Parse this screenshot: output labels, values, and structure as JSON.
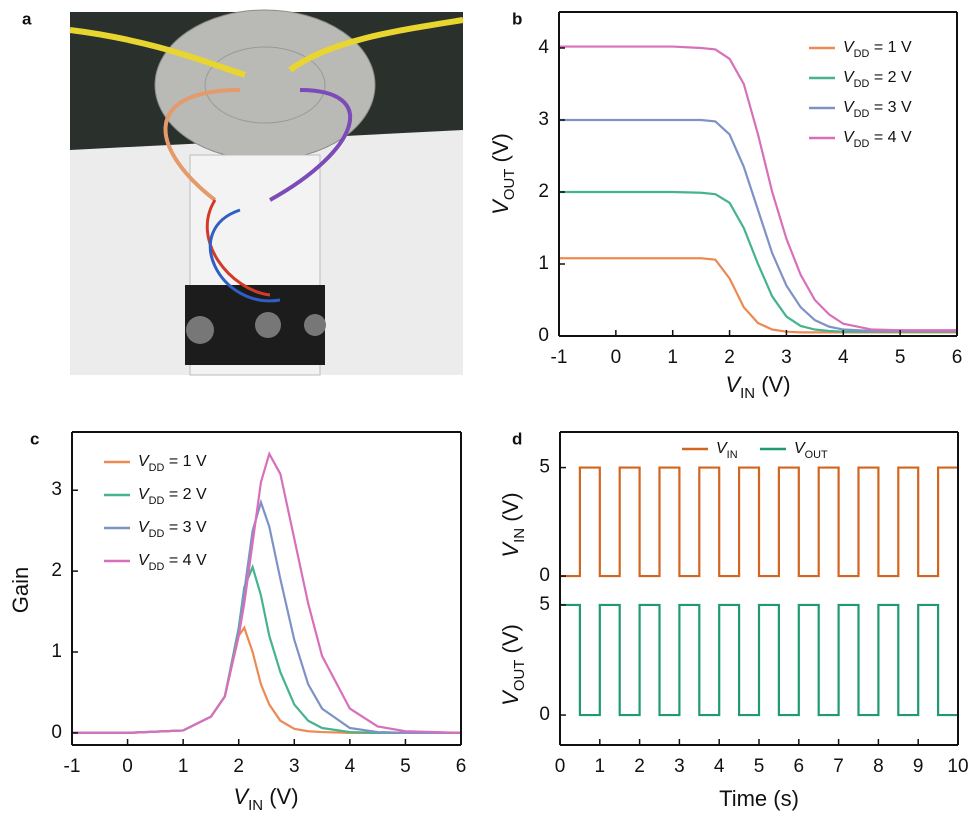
{
  "photo_panel": {
    "panel_label": "a"
  },
  "chart_data": [
    {
      "type": "line",
      "panel_label": "b",
      "x_label": {
        "symbol": "V",
        "subscript": "IN",
        "rest": " (V)"
      },
      "y_label": {
        "symbol": "V",
        "subscript": "OUT",
        "rest": " (V)"
      },
      "x": [
        -1,
        0,
        1,
        1.5,
        1.75,
        2,
        2.25,
        2.5,
        2.75,
        3,
        3.25,
        3.5,
        3.75,
        4,
        4.5,
        5,
        6
      ],
      "series": [
        {
          "name": {
            "symbol": "V",
            "subscript": "DD",
            "rest": " = 1 V"
          },
          "color": "#ec8a55",
          "values": [
            1.08,
            1.08,
            1.08,
            1.08,
            1.06,
            0.8,
            0.4,
            0.18,
            0.09,
            0.06,
            0.05,
            0.05,
            0.05,
            0.05,
            0.05,
            0.05,
            0.05
          ]
        },
        {
          "name": {
            "symbol": "V",
            "subscript": "DD",
            "rest": " = 2 V"
          },
          "color": "#45b48e",
          "values": [
            2.0,
            2.0,
            2.0,
            1.99,
            1.97,
            1.85,
            1.5,
            1.0,
            0.55,
            0.27,
            0.14,
            0.09,
            0.07,
            0.06,
            0.06,
            0.06,
            0.06
          ]
        },
        {
          "name": {
            "symbol": "V",
            "subscript": "DD",
            "rest": " = 3 V"
          },
          "color": "#7f92c6",
          "values": [
            3.0,
            3.0,
            3.0,
            3.0,
            2.98,
            2.8,
            2.35,
            1.75,
            1.15,
            0.7,
            0.4,
            0.22,
            0.13,
            0.09,
            0.07,
            0.07,
            0.07
          ]
        },
        {
          "name": {
            "symbol": "V",
            "subscript": "DD",
            "rest": " = 4 V"
          },
          "color": "#d86fbb",
          "values": [
            4.02,
            4.02,
            4.02,
            4.0,
            3.98,
            3.85,
            3.5,
            2.8,
            2.0,
            1.35,
            0.85,
            0.5,
            0.3,
            0.17,
            0.09,
            0.08,
            0.08
          ]
        }
      ],
      "xlim": [
        -1,
        6
      ],
      "ylim": [
        0,
        4.5
      ],
      "xticks": [
        -1,
        0,
        1,
        2,
        3,
        4,
        5,
        6
      ],
      "yticks": [
        0,
        1,
        2,
        3,
        4
      ],
      "legend": "upper right"
    },
    {
      "type": "line",
      "panel_label": "c",
      "x_label": {
        "symbol": "V",
        "subscript": "IN",
        "rest": " (V)"
      },
      "y_label": "Gain",
      "x": [
        -1,
        0,
        1,
        1.5,
        1.75,
        2,
        2.1,
        2.25,
        2.4,
        2.55,
        2.75,
        3,
        3.25,
        3.5,
        4,
        4.5,
        5,
        6
      ],
      "series": [
        {
          "name": {
            "symbol": "V",
            "subscript": "DD",
            "rest": " = 1 V"
          },
          "color": "#ec8a55",
          "values": [
            0,
            0,
            0.03,
            0.2,
            0.45,
            1.2,
            1.3,
            1.0,
            0.6,
            0.35,
            0.15,
            0.05,
            0.02,
            0.01,
            0,
            0,
            0,
            0
          ]
        },
        {
          "name": {
            "symbol": "V",
            "subscript": "DD",
            "rest": " = 2 V"
          },
          "color": "#45b48e",
          "values": [
            0,
            0,
            0.03,
            0.2,
            0.45,
            1.3,
            1.8,
            2.05,
            1.7,
            1.2,
            0.75,
            0.35,
            0.15,
            0.06,
            0.01,
            0,
            0,
            0
          ]
        },
        {
          "name": {
            "symbol": "V",
            "subscript": "DD",
            "rest": " = 3 V"
          },
          "color": "#7f92c6",
          "values": [
            0,
            0,
            0.03,
            0.2,
            0.45,
            1.25,
            1.75,
            2.5,
            2.85,
            2.55,
            1.9,
            1.15,
            0.6,
            0.3,
            0.06,
            0.01,
            0,
            0
          ]
        },
        {
          "name": {
            "symbol": "V",
            "subscript": "DD",
            "rest": " = 4 V"
          },
          "color": "#d86fbb",
          "values": [
            0,
            0,
            0.03,
            0.2,
            0.45,
            1.2,
            1.6,
            2.35,
            3.1,
            3.45,
            3.2,
            2.4,
            1.6,
            0.95,
            0.3,
            0.08,
            0.02,
            0
          ]
        }
      ],
      "xlim": [
        -1,
        6
      ],
      "ylim": [
        -0.15,
        3.72
      ],
      "xticks": [
        -1,
        0,
        1,
        2,
        3,
        4,
        5,
        6
      ],
      "yticks": [
        0,
        1,
        2,
        3
      ],
      "legend": "upper left"
    },
    {
      "type": "line",
      "panel_label": "d",
      "y_label": {
        "symbol": "V",
        "subscript": "IN",
        "rest": " (V)"
      },
      "x": [
        0,
        0.5,
        0.5,
        1,
        1,
        1.5,
        1.5,
        2,
        2,
        2.5,
        2.5,
        3,
        3,
        3.5,
        3.5,
        4,
        4,
        4.5,
        4.5,
        5,
        5,
        5.5,
        5.5,
        6,
        6,
        6.5,
        6.5,
        7,
        7,
        7.5,
        7.5,
        8,
        8,
        8.5,
        8.5,
        9,
        9,
        9.5,
        9.5,
        10
      ],
      "series": [
        {
          "name": {
            "symbol": "V",
            "subscript": "IN"
          },
          "color": "#d2651f",
          "values": [
            0,
            0,
            5,
            5,
            0,
            0,
            5,
            5,
            0,
            0,
            5,
            5,
            0,
            0,
            5,
            5,
            0,
            0,
            5,
            5,
            0,
            0,
            5,
            5,
            0,
            0,
            5,
            5,
            0,
            0,
            5,
            5,
            0,
            0,
            5,
            5,
            0,
            0,
            5,
            5
          ]
        }
      ],
      "legend_extra": {
        "name": {
          "symbol": "V",
          "subscript": "OUT"
        },
        "color": "#1f9a73"
      },
      "xlim": [
        0,
        10
      ],
      "ylim": [
        -0.55,
        6.64
      ],
      "yticks": [
        0,
        5
      ],
      "legend": "upper center"
    },
    {
      "type": "line",
      "x_label": "Time (s)",
      "y_label": {
        "symbol": "V",
        "subscript": "OUT",
        "rest": " (V)"
      },
      "x": [
        0,
        0.5,
        0.5,
        1,
        1,
        1.5,
        1.5,
        2,
        2,
        2.5,
        2.5,
        3,
        3,
        3.5,
        3.5,
        4,
        4,
        4.5,
        4.5,
        5,
        5,
        5.5,
        5.5,
        6,
        6,
        6.5,
        6.5,
        7,
        7,
        7.5,
        7.5,
        8,
        8,
        8.5,
        8.5,
        9,
        9,
        9.5,
        9.5,
        10
      ],
      "series": [
        {
          "color": "#1f9a73",
          "values": [
            5,
            5,
            0,
            0,
            5,
            5,
            0,
            0,
            5,
            5,
            0,
            0,
            5,
            5,
            0,
            0,
            5,
            5,
            0,
            0,
            5,
            5,
            0,
            0,
            5,
            5,
            0,
            0,
            5,
            5,
            0,
            0,
            5,
            5,
            0,
            0,
            5,
            5,
            0,
            0
          ]
        }
      ],
      "xlim": [
        0,
        10
      ],
      "ylim": [
        -1.36,
        5.77
      ],
      "xticks": [
        0,
        1,
        2,
        3,
        4,
        5,
        6,
        7,
        8,
        9,
        10
      ],
      "yticks": [
        0,
        5
      ]
    }
  ]
}
